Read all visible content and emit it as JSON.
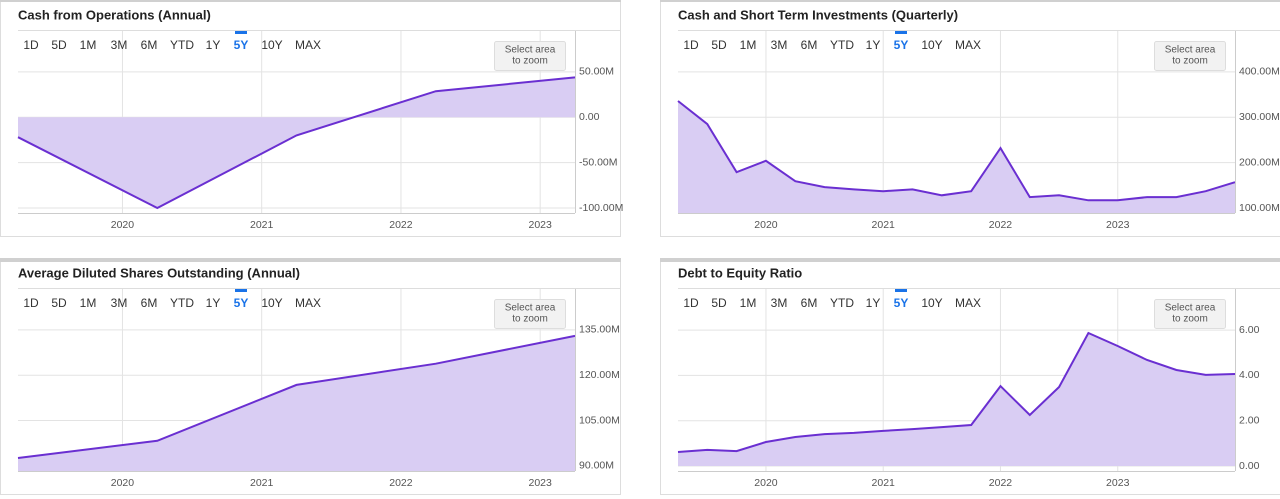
{
  "range_options": [
    "1D",
    "5D",
    "1M",
    "3M",
    "6M",
    "YTD",
    "1Y",
    "5Y",
    "10Y",
    "MAX"
  ],
  "selected_range": 7,
  "zoom_hint": [
    "Select area",
    "to zoom"
  ],
  "chart_data": [
    {
      "type": "area",
      "title": "Cash from Operations (Annual)",
      "color": "#6a2fd1",
      "fill": "#d9cdf3",
      "x": [
        2019.25,
        2020.25,
        2021.25,
        2022.25,
        2023.25
      ],
      "values": [
        -22,
        -100,
        -20,
        28.7,
        44
      ],
      "xlim": [
        2019.25,
        2023.25
      ],
      "xticks": [
        2020,
        2021,
        2022,
        2023
      ],
      "ylim": [
        -105.5,
        94
      ],
      "yticks": [
        {
          "value": 50,
          "label": "50.00M"
        },
        {
          "value": 0,
          "label": "0.00"
        },
        {
          "value": -50,
          "label": "-50.00M"
        },
        {
          "value": -100,
          "label": "-100.00M"
        }
      ],
      "grid": true
    },
    {
      "type": "area",
      "title": "Cash and Short Term Investments (Quarterly)",
      "color": "#6a2fd1",
      "fill": "#d9cdf3",
      "x": [
        2019.25,
        2019.5,
        2019.75,
        2020,
        2020.25,
        2020.5,
        2020.75,
        2021,
        2021.25,
        2021.5,
        2021.75,
        2022,
        2022.25,
        2022.5,
        2022.75,
        2023,
        2023.25,
        2023.5,
        2023.75,
        2024
      ],
      "values": [
        336,
        285,
        179,
        204,
        159,
        146,
        141,
        137,
        141,
        128,
        137,
        232,
        124,
        128,
        117,
        117,
        124,
        124,
        137,
        157
      ],
      "xlim": [
        2019.25,
        2024
      ],
      "xticks": [
        2020,
        2021,
        2022,
        2023
      ],
      "ylim": [
        89,
        488
      ],
      "yticks": [
        {
          "value": 400,
          "label": "400.00M"
        },
        {
          "value": 300,
          "label": "300.00M"
        },
        {
          "value": 200,
          "label": "200.00M"
        },
        {
          "value": 100,
          "label": "100.00M"
        }
      ],
      "grid": true
    },
    {
      "type": "area",
      "title": "Average Diluted Shares Outstanding (Annual)",
      "color": "#6a2fd1",
      "fill": "#d9cdf3",
      "x": [
        2019.25,
        2020.25,
        2021.25,
        2022.25,
        2023.25
      ],
      "values": [
        92.6,
        98.3,
        116.8,
        123.8,
        133
      ],
      "xlim": [
        2019.25,
        2023.25
      ],
      "xticks": [
        2020,
        2021,
        2022,
        2023
      ],
      "ylim": [
        88.3,
        148.2
      ],
      "yticks": [
        {
          "value": 135,
          "label": "135.00M"
        },
        {
          "value": 120,
          "label": "120.00M"
        },
        {
          "value": 105,
          "label": "105.00M"
        },
        {
          "value": 90,
          "label": "90.00M"
        }
      ],
      "grid": true
    },
    {
      "type": "area",
      "title": "Debt to Equity Ratio",
      "color": "#6a2fd1",
      "fill": "#d9cdf3",
      "x": [
        2019.25,
        2019.5,
        2019.75,
        2020,
        2020.25,
        2020.5,
        2020.75,
        2021,
        2021.25,
        2021.5,
        2021.75,
        2022,
        2022.25,
        2022.5,
        2022.75,
        2023,
        2023.25,
        2023.5,
        2023.75,
        2024
      ],
      "values": [
        0.62,
        0.71,
        0.66,
        1.06,
        1.28,
        1.41,
        1.46,
        1.55,
        1.63,
        1.72,
        1.81,
        3.53,
        2.25,
        3.49,
        5.87,
        5.3,
        4.68,
        4.24,
        4.02,
        4.06
      ],
      "xlim": [
        2019.25,
        2024
      ],
      "xticks": [
        2020,
        2021,
        2022,
        2023
      ],
      "ylim": [
        -0.22,
        7.77
      ],
      "yticks": [
        {
          "value": 6,
          "label": "6.00"
        },
        {
          "value": 4,
          "label": "4.00"
        },
        {
          "value": 2,
          "label": "2.00"
        },
        {
          "value": 0,
          "label": "0.00"
        }
      ],
      "grid": true
    }
  ]
}
